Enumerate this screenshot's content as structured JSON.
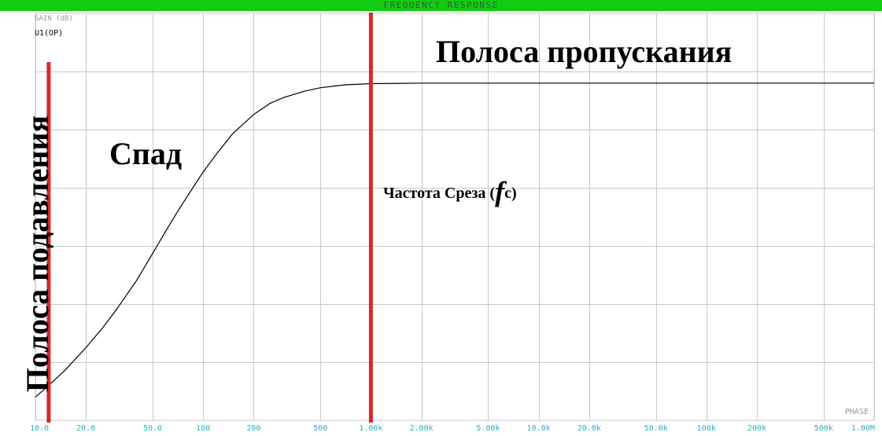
{
  "title": "FREQUENCY RESPONSE",
  "ylabel": "GAIN (dB)",
  "trace_label": "U1(OP)",
  "phase_label": "PHASE",
  "annotations": {
    "passband": "Полоса пропускания",
    "rolloff": "Спад",
    "stopband": "Полоса подавления",
    "cutoff_prefix": "Частота Среза (",
    "cutoff_symbol": "f",
    "cutoff_sub": "c",
    "cutoff_suffix": ")"
  },
  "colors": {
    "titlebar": "#11cc11",
    "grid": "#c8c8c8",
    "tick_label": "#22b5c5",
    "axis_label": "#999999",
    "curve": "#000000",
    "marker": "#d42a2a"
  },
  "chart_data": {
    "type": "line",
    "title": "FREQUENCY RESPONSE",
    "xlabel": "",
    "ylabel": "GAIN (dB)",
    "x_scale": "log",
    "xlim": [
      10,
      1000000
    ],
    "grid": true,
    "x_ticks": [
      {
        "value": 10,
        "label": "10.0"
      },
      {
        "value": 20,
        "label": "20.0"
      },
      {
        "value": 50,
        "label": "50.0"
      },
      {
        "value": 100,
        "label": "100"
      },
      {
        "value": 200,
        "label": "200"
      },
      {
        "value": 500,
        "label": "500"
      },
      {
        "value": 1000,
        "label": "1.00k"
      },
      {
        "value": 2000,
        "label": "2.00k"
      },
      {
        "value": 5000,
        "label": "5.00k"
      },
      {
        "value": 10000,
        "label": "10.0k"
      },
      {
        "value": 20000,
        "label": "20.0k"
      },
      {
        "value": 50000,
        "label": "50.0k"
      },
      {
        "value": 100000,
        "label": "100k"
      },
      {
        "value": 200000,
        "label": "200k"
      },
      {
        "value": 500000,
        "label": "500k"
      },
      {
        "value": 1000000,
        "label": "1.00M"
      }
    ],
    "y_divisions": 7,
    "ylim": [
      0,
      7
    ],
    "series": [
      {
        "name": "U1(OP)",
        "x": [
          10,
          12,
          15,
          20,
          25,
          30,
          40,
          50,
          60,
          70,
          85,
          100,
          120,
          150,
          200,
          250,
          300,
          400,
          500,
          700,
          1000,
          2000,
          5000,
          10000,
          100000,
          1000000
        ],
        "y": [
          0.4,
          0.6,
          0.86,
          1.25,
          1.58,
          1.88,
          2.4,
          2.87,
          3.26,
          3.58,
          3.96,
          4.27,
          4.58,
          4.93,
          5.26,
          5.45,
          5.55,
          5.66,
          5.72,
          5.77,
          5.79,
          5.8,
          5.8,
          5.8,
          5.8,
          5.8
        ]
      }
    ],
    "markers": [
      {
        "x": 12,
        "label": "Полоса подавления"
      },
      {
        "x": 1000,
        "label": "Частота Среза (fc)"
      }
    ]
  }
}
